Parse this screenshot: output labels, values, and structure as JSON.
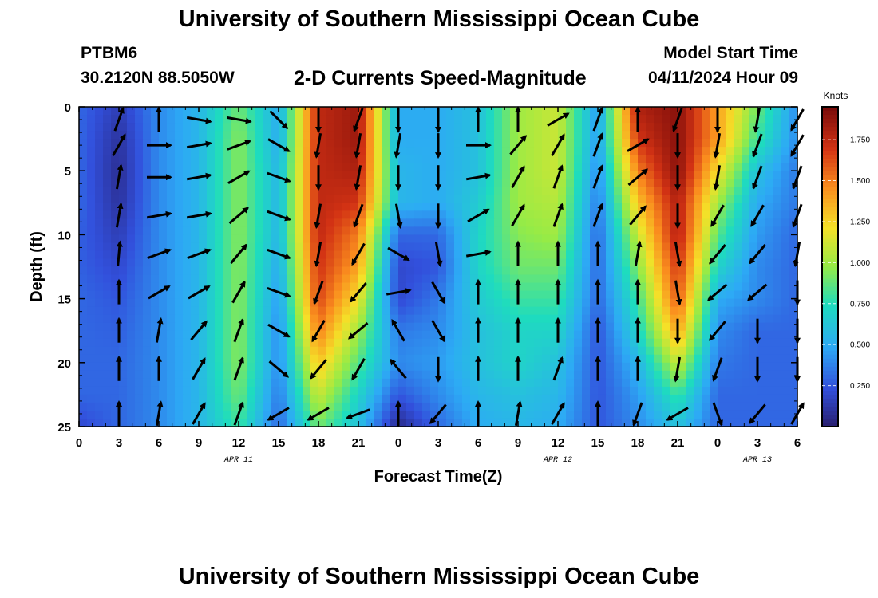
{
  "header": {
    "title": "University of Southern Mississippi Ocean Cube",
    "station": "PTBM6",
    "coords": "30.2120N  88.5050W",
    "chart_title": "2-D Currents Speed-Magnitude",
    "model_start_label": "Model Start Time",
    "model_start_value": "04/11/2024 Hour 09"
  },
  "footer": {
    "title": "University of Southern Mississippi Ocean Cube"
  },
  "chart_data": {
    "type": "heatmap",
    "title": "2-D Currents Speed-Magnitude",
    "xlabel": "Forecast Time(Z)",
    "ylabel": "Depth (ft)",
    "x_hours_since_start": [
      0,
      54
    ],
    "x_tick_labels": [
      "0",
      "3",
      "6",
      "9",
      "12",
      "15",
      "18",
      "21",
      "0",
      "3",
      "6",
      "9",
      "12",
      "15",
      "18",
      "21",
      "0",
      "3",
      "6"
    ],
    "date_labels": [
      {
        "label": "APR 11",
        "at_hour": 12
      },
      {
        "label": "APR 12",
        "at_hour": 36
      },
      {
        "label": "APR 13",
        "at_hour": 51
      }
    ],
    "y_ticks": [
      0,
      5,
      10,
      15,
      20,
      25
    ],
    "ylim": [
      0,
      25
    ],
    "y_inverted": true,
    "colorbar": {
      "label": "Knots",
      "ticks": [
        "1.750",
        "1.500",
        "1.250",
        "1.000",
        "0.750",
        "0.500",
        "0.250"
      ],
      "tick_values": [
        1.75,
        1.5,
        1.25,
        1.0,
        0.75,
        0.5,
        0.25
      ],
      "range": [
        0.0,
        1.95
      ]
    },
    "depths_ft": [
      0,
      2.5,
      5,
      7.5,
      10,
      12.5,
      15,
      17.5,
      20,
      22.5,
      25
    ],
    "times_hours": [
      0,
      3,
      6,
      9,
      12,
      15,
      18,
      21,
      24,
      27,
      30,
      33,
      36,
      39,
      42,
      45,
      48,
      51,
      54
    ],
    "speed_knots": [
      [
        0.3,
        0.15,
        0.4,
        0.55,
        0.9,
        0.5,
        1.75,
        1.85,
        0.5,
        0.5,
        0.6,
        1.0,
        1.1,
        0.45,
        1.8,
        1.9,
        1.4,
        0.9,
        0.4
      ],
      [
        0.3,
        0.1,
        0.4,
        0.55,
        0.95,
        0.5,
        1.75,
        1.85,
        0.5,
        0.5,
        0.6,
        1.0,
        1.1,
        0.45,
        1.7,
        1.9,
        1.4,
        0.8,
        0.4
      ],
      [
        0.3,
        0.08,
        0.4,
        0.55,
        0.95,
        0.55,
        1.75,
        1.8,
        0.55,
        0.5,
        0.6,
        1.0,
        1.1,
        0.4,
        1.5,
        1.9,
        1.2,
        0.6,
        0.35
      ],
      [
        0.3,
        0.1,
        0.4,
        0.55,
        0.95,
        0.55,
        1.75,
        1.7,
        0.55,
        0.5,
        0.65,
        1.0,
        1.05,
        0.35,
        1.3,
        1.8,
        1.0,
        0.5,
        0.35
      ],
      [
        0.28,
        0.15,
        0.4,
        0.55,
        0.95,
        0.55,
        1.75,
        1.5,
        0.3,
        0.3,
        0.7,
        0.95,
        1.0,
        0.3,
        1.1,
        1.8,
        0.85,
        0.45,
        0.3
      ],
      [
        0.28,
        0.2,
        0.4,
        0.55,
        0.95,
        0.5,
        1.7,
        1.4,
        0.2,
        0.25,
        0.7,
        0.9,
        0.9,
        0.3,
        0.95,
        1.7,
        0.7,
        0.4,
        0.3
      ],
      [
        0.3,
        0.25,
        0.4,
        0.55,
        0.95,
        0.45,
        1.65,
        1.2,
        0.2,
        0.35,
        0.65,
        0.8,
        0.8,
        0.3,
        0.8,
        1.6,
        0.5,
        0.4,
        0.3
      ],
      [
        0.3,
        0.28,
        0.4,
        0.55,
        0.95,
        0.4,
        1.5,
        1.0,
        0.35,
        0.4,
        0.6,
        0.7,
        0.7,
        0.25,
        0.7,
        1.4,
        0.4,
        0.3,
        0.3
      ],
      [
        0.3,
        0.3,
        0.4,
        0.55,
        0.95,
        0.4,
        1.3,
        0.85,
        0.4,
        0.45,
        0.6,
        0.7,
        0.6,
        0.25,
        0.55,
        1.1,
        0.35,
        0.3,
        0.3
      ],
      [
        0.3,
        0.3,
        0.4,
        0.55,
        0.9,
        0.35,
        1.1,
        0.7,
        0.25,
        0.4,
        0.55,
        0.6,
        0.55,
        0.25,
        0.45,
        0.8,
        0.3,
        0.3,
        0.3
      ],
      [
        0.2,
        0.3,
        0.4,
        0.55,
        0.8,
        0.3,
        0.9,
        0.6,
        0.05,
        0.3,
        0.5,
        0.55,
        0.5,
        0.25,
        0.4,
        0.6,
        0.3,
        0.3,
        0.3
      ]
    ],
    "arrow_depths_ft": [
      1,
      3,
      5.5,
      8.5,
      11.5,
      14.5,
      17.5,
      20.5,
      24
    ],
    "arrow_times_hours": [
      3,
      6,
      9,
      12,
      15,
      18,
      21,
      24,
      27,
      30,
      33,
      36,
      39,
      42,
      45,
      48,
      51,
      54
    ],
    "arrow_direction_deg": [
      [
        20,
        0,
        100,
        100,
        135,
        180,
        200,
        180,
        180,
        0,
        0,
        60,
        20,
        0,
        200,
        180,
        190,
        210
      ],
      [
        30,
        90,
        80,
        70,
        120,
        190,
        190,
        190,
        180,
        90,
        40,
        30,
        20,
        60,
        180,
        190,
        200,
        210
      ],
      [
        10,
        90,
        80,
        60,
        110,
        180,
        190,
        180,
        180,
        80,
        30,
        20,
        20,
        50,
        180,
        190,
        200,
        200
      ],
      [
        10,
        80,
        80,
        50,
        110,
        190,
        200,
        170,
        180,
        60,
        30,
        20,
        20,
        40,
        180,
        210,
        210,
        200
      ],
      [
        5,
        70,
        70,
        40,
        110,
        190,
        210,
        120,
        170,
        80,
        0,
        0,
        0,
        10,
        170,
        220,
        220,
        190
      ],
      [
        0,
        60,
        60,
        30,
        110,
        200,
        220,
        80,
        150,
        0,
        0,
        0,
        0,
        0,
        170,
        230,
        230,
        180
      ],
      [
        0,
        10,
        40,
        20,
        120,
        210,
        230,
        330,
        150,
        0,
        0,
        0,
        0,
        0,
        180,
        220,
        180,
        180
      ],
      [
        0,
        0,
        30,
        20,
        130,
        220,
        210,
        320,
        180,
        0,
        0,
        20,
        0,
        0,
        190,
        200,
        180,
        180
      ],
      [
        0,
        10,
        30,
        20,
        240,
        240,
        250,
        0,
        220,
        0,
        10,
        30,
        0,
        200,
        240,
        160,
        220,
        30
      ]
    ]
  }
}
